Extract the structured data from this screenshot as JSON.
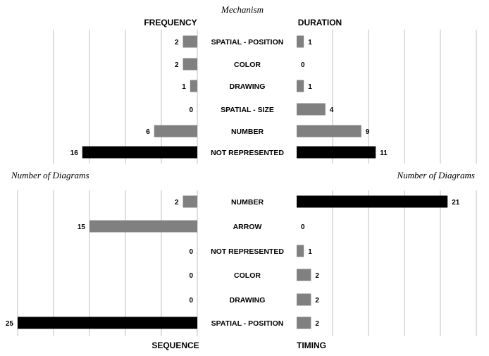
{
  "figure": {
    "top_title": "Mechanism",
    "left_axis_note": "Number of Diagrams",
    "right_axis_note": "Number of Diagrams"
  },
  "chart_data": [
    {
      "type": "bar",
      "orientation": "horizontal",
      "direction": "leftward",
      "title": "FREQUENCY",
      "categories": [
        "SPATIAL - POSITION",
        "COLOR",
        "DRAWING",
        "SPATIAL - SIZE",
        "NUMBER",
        "NOT REPRESENTED"
      ],
      "values": [
        2,
        2,
        1,
        0,
        6,
        16
      ],
      "highlight": [
        "NOT REPRESENTED"
      ],
      "xlim": [
        0,
        25
      ],
      "grid": true,
      "colors": {
        "bar": "#808080",
        "highlight": "#000000",
        "grid": "#bfbfbf"
      }
    },
    {
      "type": "bar",
      "orientation": "horizontal",
      "direction": "rightward",
      "title": "DURATION",
      "categories": [
        "SPATIAL - POSITION",
        "COLOR",
        "DRAWING",
        "SPATIAL - SIZE",
        "NUMBER",
        "NOT REPRESENTED"
      ],
      "values": [
        1,
        0,
        1,
        4,
        9,
        11
      ],
      "highlight": [
        "NOT REPRESENTED"
      ],
      "xlim": [
        0,
        25
      ],
      "grid": true,
      "colors": {
        "bar": "#808080",
        "highlight": "#000000",
        "grid": "#bfbfbf"
      }
    },
    {
      "type": "bar",
      "orientation": "horizontal",
      "direction": "leftward",
      "title": "SEQUENCE",
      "categories": [
        "NUMBER",
        "ARROW",
        "NOT REPRESENTED",
        "COLOR",
        "DRAWING",
        "SPATIAL - POSITION"
      ],
      "values": [
        2,
        15,
        0,
        0,
        0,
        25
      ],
      "highlight": [
        "SPATIAL - POSITION"
      ],
      "xlim": [
        0,
        25
      ],
      "grid": true,
      "colors": {
        "bar": "#808080",
        "highlight": "#000000",
        "grid": "#bfbfbf"
      }
    },
    {
      "type": "bar",
      "orientation": "horizontal",
      "direction": "rightward",
      "title": "TIMING",
      "categories": [
        "NUMBER",
        "ARROW",
        "NOT REPRESENTED",
        "COLOR",
        "DRAWING",
        "SPATIAL - POSITION"
      ],
      "values": [
        21,
        0,
        1,
        2,
        2,
        2
      ],
      "highlight": [
        "NUMBER"
      ],
      "xlim": [
        0,
        25
      ],
      "grid": true,
      "colors": {
        "bar": "#808080",
        "highlight": "#000000",
        "grid": "#bfbfbf"
      }
    }
  ]
}
